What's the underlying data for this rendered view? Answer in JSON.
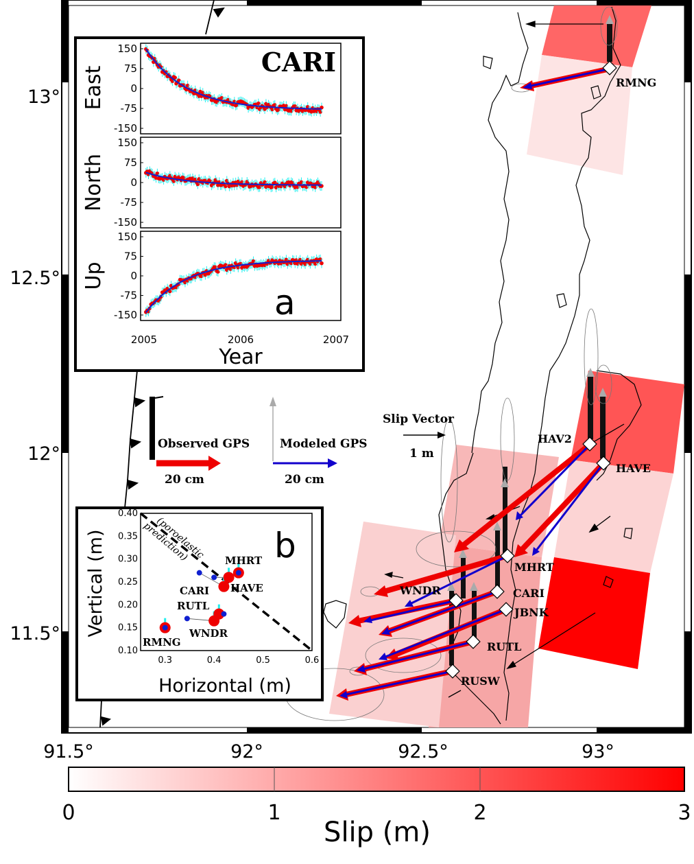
{
  "map": {
    "lat_ticks": [
      "13°",
      "12.5°",
      "12°",
      "11.5°"
    ],
    "lon_ticks": [
      "91.5°",
      "92°",
      "92.5°",
      "93°"
    ],
    "stations": [
      "RMNG",
      "HAV2",
      "HAVE",
      "MHRT",
      "CARI",
      "JBNK",
      "WNDR",
      "RUTL",
      "RUSW"
    ]
  },
  "legend": {
    "observed_label": "Observed GPS",
    "observed_scale": "20 cm",
    "modeled_label": "Modeled GPS",
    "modeled_scale": "20 cm",
    "slip_label": "Slip Vector",
    "slip_scale": "1 m",
    "colors": {
      "observed": "#ee0000",
      "modeled": "#1010cc",
      "vertical_model": "#aaaaaa"
    }
  },
  "inset_a": {
    "station": "CARI",
    "panel_letter": "a",
    "panels": [
      "East",
      "North",
      "Up"
    ],
    "y_ticks": [
      "150",
      "75",
      "0",
      "-75",
      "-150"
    ],
    "x_ticks": [
      "2005",
      "2006",
      "2007"
    ],
    "xlabel": "Year"
  },
  "inset_b": {
    "panel_letter": "b",
    "xlabel": "Horizontal (m)",
    "ylabel": "Vertical (m)",
    "x_ticks": [
      "0.3",
      "0.4",
      "0.5",
      "0.6"
    ],
    "y_ticks": [
      "0.40",
      "0.35",
      "0.30",
      "0.25",
      "0.20",
      "0.15",
      "0.10"
    ],
    "annotation": "(poroelastic prediction)",
    "annotation_line1": "(poroelastic",
    "annotation_line2": "prediction)"
  },
  "colorbar": {
    "label": "Slip (m)",
    "ticks": [
      "0",
      "1",
      "2",
      "3"
    ],
    "min_color": "#ffffff",
    "max_color": "#ff0000"
  },
  "chart_data": [
    {
      "type": "scatter",
      "title": "CARI",
      "xlabel": "Year",
      "x_range": [
        2005,
        2007
      ],
      "series": [
        {
          "name": "East",
          "ylim": [
            -150,
            150
          ],
          "model_start": 160,
          "model_end": -80
        },
        {
          "name": "North",
          "ylim": [
            -150,
            150
          ],
          "model_start": 40,
          "model_end": -10
        },
        {
          "name": "Up",
          "ylim": [
            -150,
            150
          ],
          "model_start": -150,
          "model_end": 60
        }
      ]
    },
    {
      "type": "scatter",
      "xlabel": "Horizontal (m)",
      "ylabel": "Vertical (m)",
      "xlim": [
        0.25,
        0.6
      ],
      "ylim": [
        0.1,
        0.4
      ],
      "observed": [
        {
          "label": "MHRT",
          "x": 0.45,
          "y": 0.27
        },
        {
          "label": "HAVE",
          "x": 0.43,
          "y": 0.26
        },
        {
          "label": "CARI",
          "x": 0.42,
          "y": 0.24
        },
        {
          "label": "RUTL",
          "x": 0.41,
          "y": 0.18
        },
        {
          "label": "WNDR",
          "x": 0.4,
          "y": 0.165
        },
        {
          "label": "RMNG",
          "x": 0.3,
          "y": 0.15
        }
      ],
      "modeled": [
        {
          "label": "MHRT",
          "x": 0.45,
          "y": 0.27
        },
        {
          "label": "HAVE",
          "x": 0.4,
          "y": 0.26
        },
        {
          "label": "CARI",
          "x": 0.37,
          "y": 0.27
        },
        {
          "label": "RUTL",
          "x": 0.42,
          "y": 0.18
        },
        {
          "label": "WNDR",
          "x": 0.345,
          "y": 0.17
        },
        {
          "label": "RMNG",
          "x": 0.3,
          "y": 0.15
        }
      ],
      "poroelastic_line": [
        [
          0.25,
          0.4
        ],
        [
          0.6,
          0.1
        ]
      ]
    }
  ]
}
